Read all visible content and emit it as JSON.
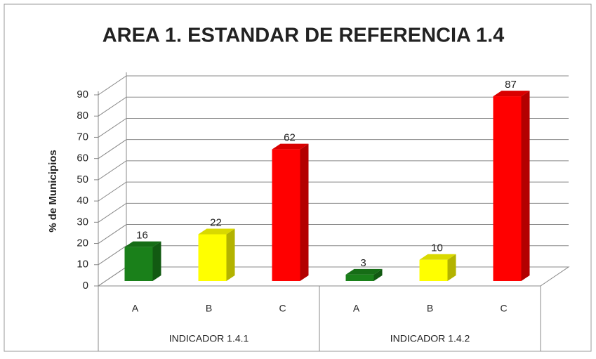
{
  "chart_data": {
    "type": "bar3d",
    "title": "AREA 1. ESTANDAR DE REFERENCIA 1.4",
    "ylabel": "% de Municipios",
    "ylim": [
      0,
      90
    ],
    "yticks": [
      0,
      10,
      20,
      30,
      40,
      50,
      60,
      70,
      80,
      90
    ],
    "grid": true,
    "groups": [
      {
        "name": "INDICADOR 1.4.1",
        "categories": [
          "A",
          "B",
          "C"
        ],
        "values": [
          16,
          22,
          62
        ],
        "colors": [
          "#1a801a",
          "#ffff00",
          "#ff0000"
        ]
      },
      {
        "name": "INDICADOR 1.4.2",
        "categories": [
          "A",
          "B",
          "C"
        ],
        "values": [
          3,
          10,
          87
        ],
        "colors": [
          "#1a801a",
          "#ffff00",
          "#ff0000"
        ]
      }
    ]
  }
}
